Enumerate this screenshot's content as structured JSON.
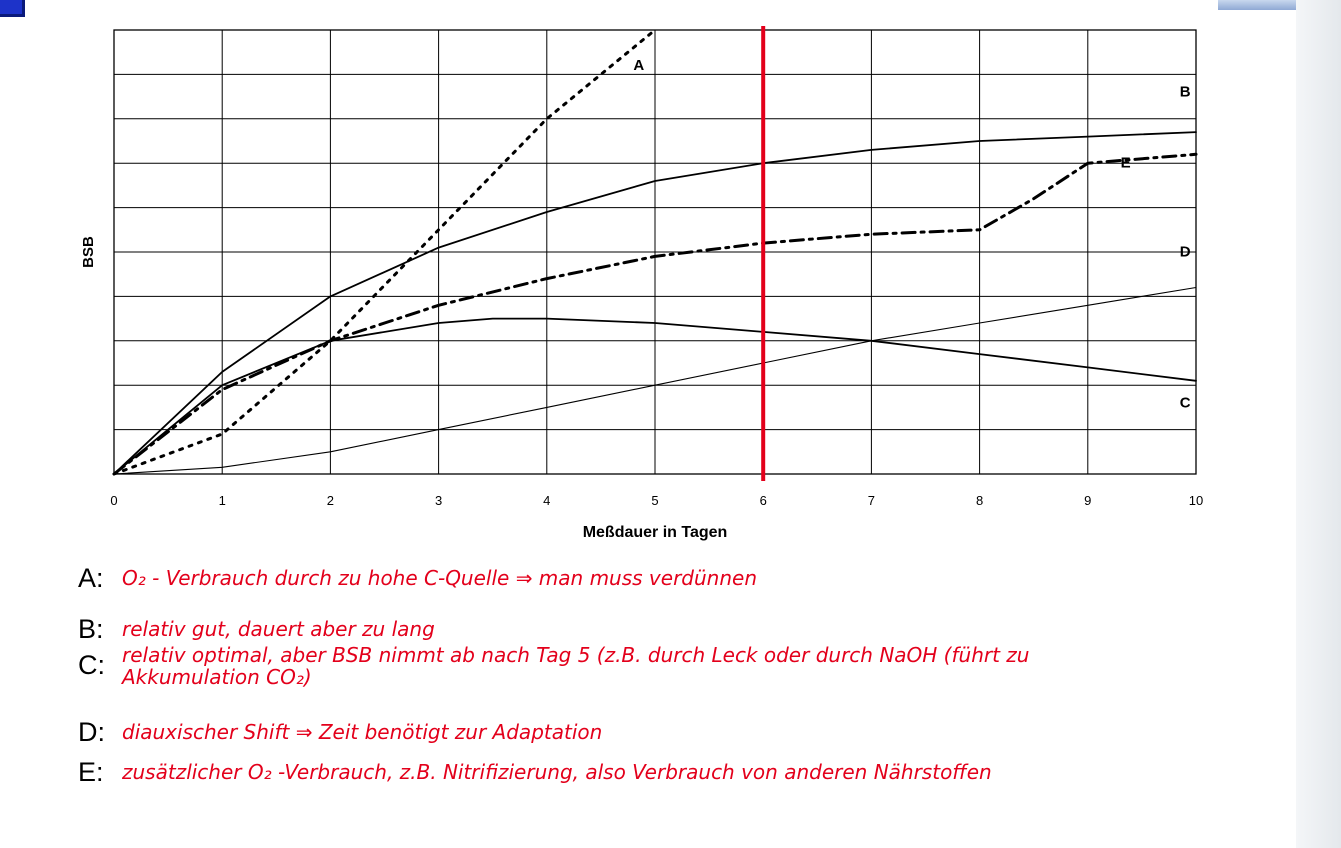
{
  "chart_data": {
    "type": "line",
    "xlabel": "Meßdauer in Tagen",
    "ylabel": "BSB",
    "xlim": [
      0,
      10
    ],
    "ylim": [
      0,
      10
    ],
    "x_ticks": [
      "0",
      "1",
      "2",
      "3",
      "4",
      "5",
      "6",
      "7",
      "8",
      "9",
      "10"
    ],
    "grid": true,
    "series": [
      {
        "name": "A",
        "style": "dotted",
        "color": "#000000",
        "x": [
          0,
          1,
          2,
          3,
          4,
          5
        ],
        "y": [
          0,
          0.9,
          3.0,
          5.5,
          8.0,
          10.0
        ]
      },
      {
        "name": "B",
        "style": "solid",
        "color": "#000000",
        "x": [
          0,
          1,
          2,
          3,
          4,
          5,
          6,
          7,
          8,
          9,
          10
        ],
        "y": [
          0,
          2.3,
          4.0,
          5.1,
          5.9,
          6.6,
          7.0,
          7.3,
          7.5,
          7.6,
          7.7
        ]
      },
      {
        "name": "C",
        "style": "solid",
        "color": "#000000",
        "x": [
          0,
          1,
          2,
          3,
          3.5,
          4,
          5,
          6,
          7,
          8,
          9,
          10
        ],
        "y": [
          0,
          2.0,
          3.0,
          3.4,
          3.5,
          3.5,
          3.4,
          3.2,
          3.0,
          2.7,
          2.4,
          2.1
        ]
      },
      {
        "name": "D",
        "style": "solid",
        "color": "#000000",
        "x": [
          0,
          1,
          2,
          3,
          4,
          5,
          6,
          7,
          8,
          9,
          10
        ],
        "y": [
          0,
          0.15,
          0.5,
          1.0,
          1.5,
          2.0,
          2.5,
          3.0,
          3.4,
          3.8,
          4.2
        ]
      },
      {
        "name": "E",
        "style": "dashdot",
        "color": "#000000",
        "x": [
          0,
          1,
          2,
          3,
          4,
          5,
          6,
          7,
          8,
          8.5,
          9,
          10
        ],
        "y": [
          0,
          1.9,
          3.0,
          3.8,
          4.4,
          4.9,
          5.2,
          5.4,
          5.5,
          6.2,
          7.0,
          7.2
        ]
      }
    ],
    "annotations": [
      {
        "text": "A",
        "x": 4.85,
        "y": 9.1
      },
      {
        "text": "B",
        "x": 9.9,
        "y": 8.5
      },
      {
        "text": "E",
        "x": 9.35,
        "y": 6.9
      },
      {
        "text": "D",
        "x": 9.9,
        "y": 4.9
      },
      {
        "text": "C",
        "x": 9.9,
        "y": 1.5
      }
    ],
    "vline": {
      "x": 6,
      "color": "#e3001b"
    }
  },
  "notes": [
    {
      "letter": "A:",
      "text": "O₂ - Verbrauch durch zu hohe C-Quelle ⇒ man muss verdünnen"
    },
    {
      "letter": "B:",
      "text": "relativ gut, dauert aber zu lang"
    },
    {
      "letter": "C:",
      "text": "relativ optimal, aber BSB nimmt ab nach Tag 5 (z.B. durch Leck oder durch NaOH (führt zu Akkumulation CO₂)"
    },
    {
      "letter": "D:",
      "text": "diauxischer Shift ⇒ Zeit benötigt zur Adaptation"
    },
    {
      "letter": "E:",
      "text": "zusätzlicher O₂ -Verbrauch, z.B. Nitrifizierung, also Verbrauch von anderen Nährstoffen"
    }
  ]
}
